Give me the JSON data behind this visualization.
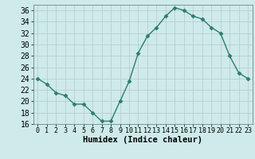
{
  "xlabel": "Humidex (Indice chaleur)",
  "x": [
    0,
    1,
    2,
    3,
    4,
    5,
    6,
    7,
    8,
    9,
    10,
    11,
    12,
    13,
    14,
    15,
    16,
    17,
    18,
    19,
    20,
    21,
    22,
    23
  ],
  "y": [
    24,
    23,
    21.5,
    21,
    19.5,
    19.5,
    18,
    16.5,
    16.5,
    20,
    23.5,
    28.5,
    31.5,
    33,
    35,
    36.5,
    36,
    35,
    34.5,
    33,
    32,
    28,
    25,
    24
  ],
  "line_color": "#2e7d6e",
  "marker": "D",
  "marker_size": 2.5,
  "bg_color": "#ceeaea",
  "grid_color": "#b8c8c8",
  "ylim": [
    16,
    37
  ],
  "xlim": [
    -0.5,
    23.5
  ],
  "yticks": [
    16,
    18,
    20,
    22,
    24,
    26,
    28,
    30,
    32,
    34,
    36
  ],
  "xticks": [
    0,
    1,
    2,
    3,
    4,
    5,
    6,
    7,
    8,
    9,
    10,
    11,
    12,
    13,
    14,
    15,
    16,
    17,
    18,
    19,
    20,
    21,
    22,
    23
  ],
  "ytick_fontsize": 7,
  "xtick_fontsize": 6,
  "xlabel_fontsize": 7.5,
  "line_width": 1.0
}
